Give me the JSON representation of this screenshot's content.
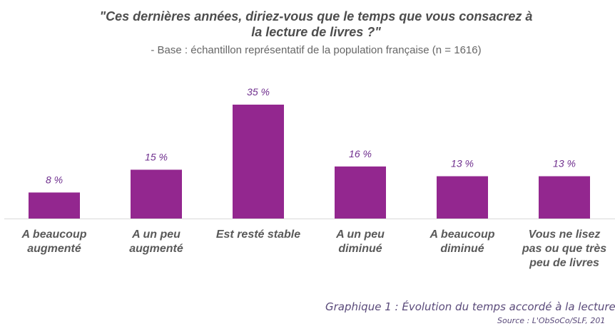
{
  "header": {
    "title_line1": "\"Ces dernières années, diriez-vous que le temps que vous consacrez à",
    "title_line2": "la lecture de livres ?\"",
    "subtitle": "- Base : échantillon représentatif de la population française (n = 1616)"
  },
  "footer": {
    "caption": "Graphique 1 : Évolution du temps accordé à la lecture",
    "source": "Source : L'ObSoCo/SLF, 201"
  },
  "colors": {
    "bar": "#93278f",
    "value_label": "#6f2f8e",
    "axis_line": "#d9d9d9"
  },
  "chart_data": {
    "type": "bar",
    "title": "\"Ces dernières années, diriez-vous que le temps que vous consacrez à la lecture de livres ?\"",
    "subtitle": "- Base : échantillon représentatif de la population française (n = 1616)",
    "categories": [
      [
        "A beaucoup",
        "augmenté"
      ],
      [
        "A un peu",
        "augmenté"
      ],
      [
        "Est resté stable"
      ],
      [
        "A un peu",
        "diminué"
      ],
      [
        "A beaucoup",
        "diminué"
      ],
      [
        "Vous ne lisez",
        "pas ou que très",
        "peu de livres"
      ]
    ],
    "values": [
      8,
      15,
      35,
      16,
      13,
      13
    ],
    "value_labels": [
      "8 %",
      "15 %",
      "35 %",
      "16 %",
      "13 %",
      "13 %"
    ],
    "unit": "%",
    "ylim": [
      0,
      35
    ],
    "grid": false,
    "legend": "none"
  }
}
